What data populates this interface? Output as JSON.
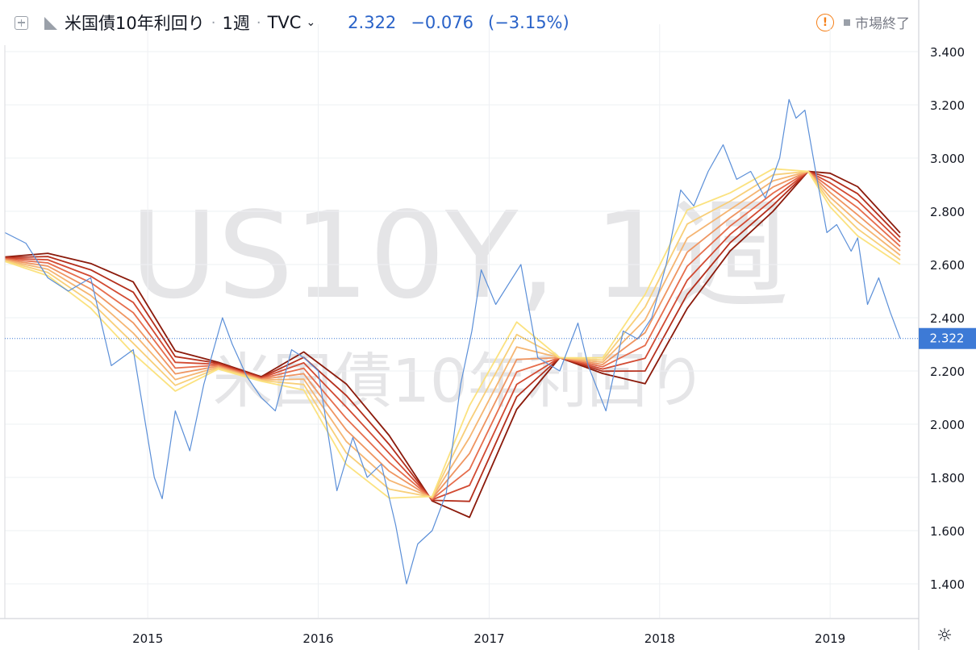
{
  "header": {
    "symbol_name": "米国債10年利回り",
    "interval": "1週",
    "source": "TVC",
    "price": "2.322",
    "change": "−0.076",
    "change_pct": "(−3.15%)",
    "status": "市場終了"
  },
  "watermark": {
    "line1": "US10Y, 1週",
    "line2": "米国債10年利回り"
  },
  "colors": {
    "price_line": "#5b8fd8",
    "last_price_label_bg": "#3d7ad6",
    "ribbon": [
      "#8b1a0b",
      "#b52f1c",
      "#d24a32",
      "#e66d4c",
      "#ef9561",
      "#f5b572",
      "#f8cf79",
      "#fbe27f"
    ]
  },
  "chart_data": {
    "type": "line",
    "ylim": [
      1.25,
      3.5
    ],
    "y_ticks": [
      "1.400",
      "1.600",
      "1.800",
      "2.000",
      "2.200",
      "2.400",
      "2.600",
      "2.800",
      "3.000",
      "3.200",
      "3.400"
    ],
    "x_ticks": [
      "2015",
      "2016",
      "2017",
      "2018",
      "2019"
    ],
    "last_price_label": "2.322",
    "series": [
      {
        "role": "price",
        "x": [
          "2014-03-01",
          "2014-04-15",
          "2014-06-01",
          "2014-07-15",
          "2014-09-01",
          "2014-10-15",
          "2014-12-01",
          "2015-01-15",
          "2015-02-01",
          "2015-03-01",
          "2015-04-01",
          "2015-05-01",
          "2015-06-10",
          "2015-07-01",
          "2015-08-01",
          "2015-09-01",
          "2015-10-01",
          "2015-11-05",
          "2015-12-01",
          "2016-01-01",
          "2016-02-10",
          "2016-03-15",
          "2016-04-15",
          "2016-05-15",
          "2016-06-15",
          "2016-07-08",
          "2016-08-01",
          "2016-09-01",
          "2016-10-01",
          "2016-11-01",
          "2016-11-25",
          "2016-12-15",
          "2017-01-15",
          "2017-03-10",
          "2017-04-15",
          "2017-06-01",
          "2017-07-10",
          "2017-08-01",
          "2017-09-08",
          "2017-10-15",
          "2017-11-15",
          "2017-12-15",
          "2018-01-15",
          "2018-02-15",
          "2018-03-15",
          "2018-04-15",
          "2018-05-17",
          "2018-06-15",
          "2018-07-15",
          "2018-08-15",
          "2018-09-15",
          "2018-10-05",
          "2018-10-20",
          "2018-11-08",
          "2018-12-01",
          "2018-12-25",
          "2019-01-15",
          "2019-02-15",
          "2019-03-01",
          "2019-03-22",
          "2019-04-15",
          "2019-05-10",
          "2019-05-31"
        ],
        "values": [
          2.72,
          2.68,
          2.55,
          2.5,
          2.55,
          2.22,
          2.28,
          1.8,
          1.72,
          2.05,
          1.9,
          2.15,
          2.4,
          2.3,
          2.18,
          2.1,
          2.05,
          2.28,
          2.25,
          2.2,
          1.75,
          1.95,
          1.8,
          1.85,
          1.62,
          1.4,
          1.55,
          1.6,
          1.74,
          2.15,
          2.35,
          2.58,
          2.45,
          2.6,
          2.25,
          2.2,
          2.38,
          2.22,
          2.05,
          2.35,
          2.32,
          2.4,
          2.6,
          2.88,
          2.82,
          2.95,
          3.05,
          2.92,
          2.95,
          2.85,
          3.0,
          3.22,
          3.15,
          3.18,
          2.95,
          2.72,
          2.75,
          2.65,
          2.7,
          2.45,
          2.55,
          2.42,
          2.322
        ]
      },
      {
        "role": "ribbon",
        "x": [
          "2014-03-01",
          "2014-06-01",
          "2014-09-01",
          "2014-12-01",
          "2015-03-01",
          "2015-06-01",
          "2015-09-01",
          "2015-12-01",
          "2016-03-01",
          "2016-06-01",
          "2016-09-01",
          "2016-11-20",
          "2017-03-01",
          "2017-06-01",
          "2017-09-01",
          "2017-12-01",
          "2018-03-01",
          "2018-06-01",
          "2018-09-01",
          "2018-11-15",
          "2019-01-01",
          "2019-03-01",
          "2019-05-31"
        ],
        "values": [
          2.62,
          2.6,
          2.52,
          2.4,
          2.2,
          2.22,
          2.17,
          2.2,
          2.0,
          1.84,
          1.72,
          1.86,
          2.22,
          2.25,
          2.22,
          2.32,
          2.62,
          2.76,
          2.88,
          2.95,
          2.88,
          2.8,
          2.66
        ]
      }
    ]
  }
}
